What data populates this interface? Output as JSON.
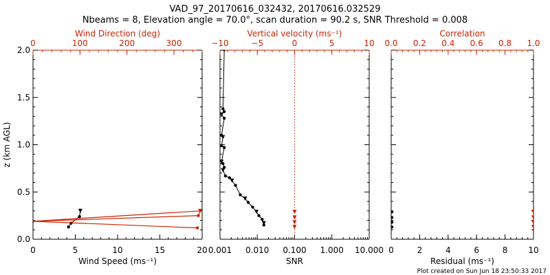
{
  "header": {
    "line1": "VAD_97_20170616_032432, 20170616.032529",
    "line2": "Nbeams = 8, Elevation angle = 70.0°, scan duration = 90.2 s, SNR Threshold = 0.008"
  },
  "footer": {
    "created": "Plot created on Sun Jun 18 23:50:33 2017"
  },
  "colors": {
    "axis": "#000000",
    "accent": "#cc2200",
    "background": "#ffffff"
  },
  "chart_data": [
    {
      "type": "line",
      "panel": "left",
      "ylabel": "z (km AGL)",
      "ylim": [
        0,
        2
      ],
      "yticks": [
        "0.0",
        "0.5",
        "1.0",
        "1.5",
        "2.0"
      ],
      "xlabel": "Wind Speed (ms⁻¹)",
      "xlim": [
        0,
        20
      ],
      "xticks": [
        "0",
        "5",
        "10",
        "15",
        "20"
      ],
      "x2label": "Wind Direction (deg)",
      "x2lim": [
        0,
        360
      ],
      "x2ticks": [
        "0",
        "100",
        "200",
        "300"
      ],
      "series": [
        {
          "axis": "bottom",
          "color": "#000000",
          "x": [
            4.2,
            4.5,
            5.5,
            5.6
          ],
          "y": [
            0.13,
            0.17,
            0.24,
            0.3
          ]
        },
        {
          "axis": "top",
          "color": "#cc2200",
          "x": [
            0,
            352,
            356,
            0,
            350
          ],
          "y": [
            0.19,
            0.25,
            0.3,
            0.19,
            0.12
          ]
        }
      ]
    },
    {
      "type": "line",
      "panel": "middle",
      "xlabel": "SNR",
      "xscale": "log",
      "xlim": [
        0.001,
        10
      ],
      "xticks": [
        "0.001",
        "0.010",
        "0.100",
        "1.000",
        "10.000"
      ],
      "x2label": "Vertical velocity (ms⁻¹)",
      "x2lim": [
        -10,
        10
      ],
      "x2ticks": [
        "−10",
        "−5",
        "0",
        "5",
        "10"
      ],
      "ylim": [
        0,
        2
      ],
      "reference_line": {
        "axis": "top",
        "x": 0,
        "color": "#cc2200",
        "style": "dotted"
      },
      "series": [
        {
          "axis": "bottom",
          "color": "#000000",
          "x": [
            0.0015,
            0.0013,
            0.0012,
            0.0013,
            0.0011,
            0.0013,
            0.0011,
            0.0012,
            0.0011,
            0.0013,
            0.0011,
            0.0012,
            0.0013,
            0.0012,
            0.0014,
            0.0018,
            0.0021,
            0.0026,
            0.0035,
            0.0047,
            0.0057,
            0.0075,
            0.0095,
            0.011,
            0.0135,
            0.015,
            0.015
          ],
          "y": [
            2.02,
            2.0,
            1.38,
            1.35,
            1.32,
            1.28,
            1.1,
            1.08,
            0.99,
            0.97,
            0.82,
            0.8,
            0.76,
            0.73,
            0.67,
            0.65,
            0.62,
            0.57,
            0.47,
            0.43,
            0.39,
            0.34,
            0.29,
            0.25,
            0.21,
            0.17,
            0.15
          ]
        },
        {
          "axis": "top",
          "color": "#cc2200",
          "x": [
            0,
            0,
            0,
            0
          ],
          "y": [
            0.13,
            0.18,
            0.23,
            0.29
          ]
        }
      ]
    },
    {
      "type": "scatter",
      "panel": "right",
      "xlabel": "Residual (ms⁻¹)",
      "xlim": [
        0,
        10
      ],
      "xticks": [
        "0",
        "2",
        "4",
        "6",
        "8",
        "10"
      ],
      "x2label": "Correlation",
      "x2lim": [
        0,
        1
      ],
      "x2ticks": [
        "0.0",
        "0.2",
        "0.4",
        "0.6",
        "0.8",
        "1.0"
      ],
      "ylim": [
        0,
        2
      ],
      "series": [
        {
          "axis": "bottom",
          "color": "#000000",
          "x": [
            0.05,
            0.05,
            0.05,
            0.05
          ],
          "y": [
            0.13,
            0.18,
            0.23,
            0.29
          ]
        },
        {
          "axis": "top",
          "color": "#cc2200",
          "x": [
            1.0,
            1.0,
            1.0,
            1.0
          ],
          "y": [
            0.13,
            0.18,
            0.23,
            0.29
          ]
        }
      ]
    }
  ]
}
